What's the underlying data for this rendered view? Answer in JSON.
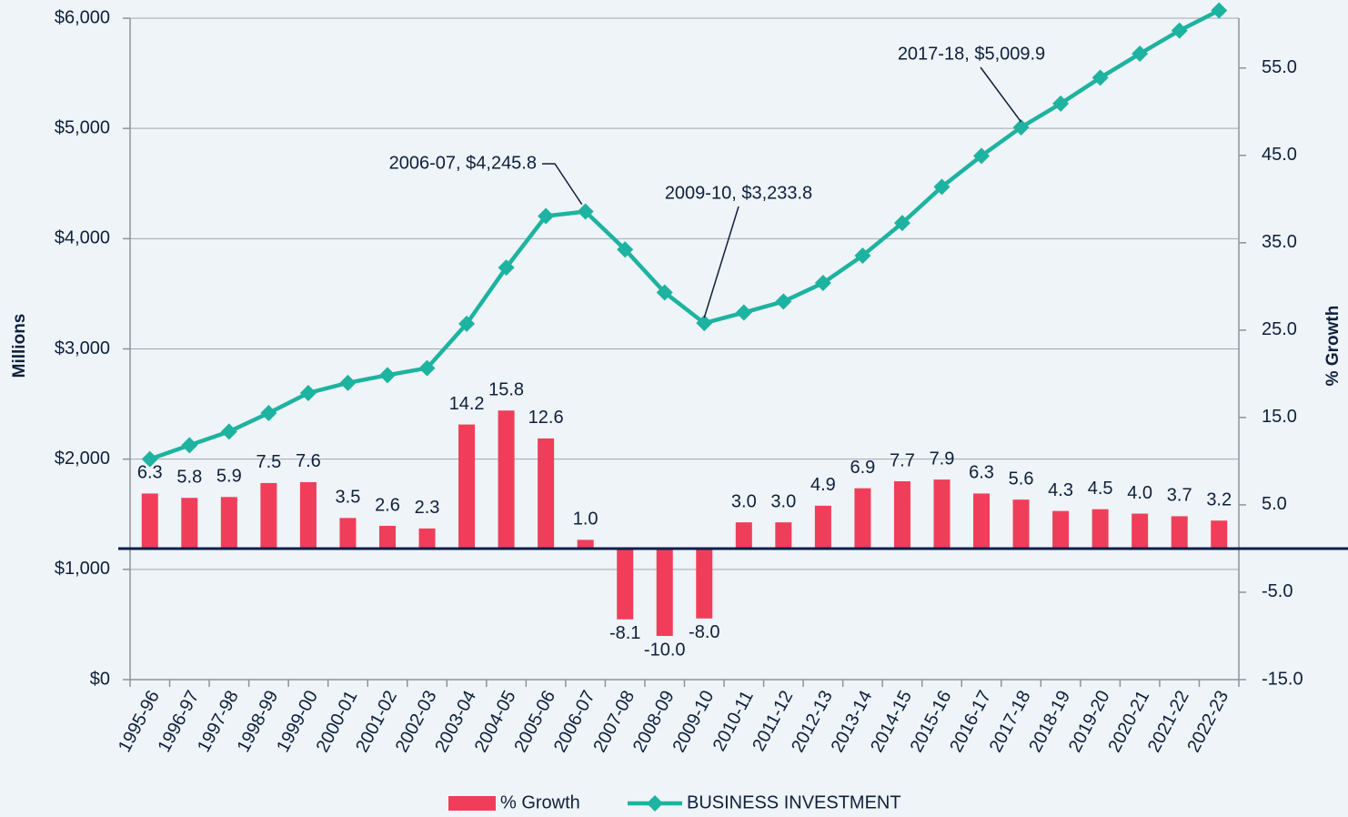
{
  "chart_data": {
    "type": "bar-line",
    "categories": [
      "1995-96",
      "1996-97",
      "1997-98",
      "1998-99",
      "1999-00",
      "2000-01",
      "2001-02",
      "2002-03",
      "2003-04",
      "2004-05",
      "2005-06",
      "2006-07",
      "2007-08",
      "2008-09",
      "2009-10",
      "2010-11",
      "2011-12",
      "2012-13",
      "2013-14",
      "2014-15",
      "2015-16",
      "2016-17",
      "2017-18",
      "2018-19",
      "2019-20",
      "2020-21",
      "2021-22",
      "2022-23"
    ],
    "series": [
      {
        "name": "% Growth",
        "type": "bar",
        "axis": "y2",
        "color": "#f03e5a",
        "values": [
          6.3,
          5.8,
          5.9,
          7.5,
          7.6,
          3.5,
          2.6,
          2.3,
          14.2,
          15.8,
          12.6,
          1.0,
          -8.1,
          -10.0,
          -8.0,
          3.0,
          3.0,
          4.9,
          6.9,
          7.7,
          7.9,
          6.3,
          5.6,
          4.3,
          4.5,
          4.0,
          3.7,
          3.2
        ],
        "value_labels": [
          "6.3",
          "5.8",
          "5.9",
          "7.5",
          "7.6",
          "3.5",
          "2.6",
          "2.3",
          "14.2",
          "15.8",
          "12.6",
          "1.0",
          "-8.1",
          "-10.0",
          "-8.0",
          "3.0",
          "3.0",
          "4.9",
          "6.9",
          "7.7",
          "7.9",
          "6.3",
          "5.6",
          "4.3",
          "4.5",
          "4.0",
          "3.7",
          "3.2"
        ]
      },
      {
        "name": "BUSINESS INVESTMENT",
        "type": "line",
        "axis": "y",
        "color": "#1db3a0",
        "values": [
          2000,
          2126,
          2250,
          2418,
          2600,
          2692,
          2762,
          2826,
          3228,
          3738,
          4205,
          4245.8,
          3902,
          3512,
          3233.8,
          3330,
          3430,
          3598,
          3846,
          4142,
          4470,
          4751,
          5009.9,
          5225,
          5460,
          5678,
          5888,
          6070
        ]
      }
    ],
    "ylabel": "Millions",
    "y2label": "% Growth",
    "ylim": [
      0,
      6000
    ],
    "yticks": [
      {
        "value": 0,
        "label": "$0"
      },
      {
        "value": 1000,
        "label": "$1,000"
      },
      {
        "value": 2000,
        "label": "$2,000"
      },
      {
        "value": 3000,
        "label": "$3,000"
      },
      {
        "value": 4000,
        "label": "$4,000"
      },
      {
        "value": 5000,
        "label": "$5,000"
      },
      {
        "value": 6000,
        "label": "$6,000"
      }
    ],
    "y2lim": [
      -15,
      60.7
    ],
    "y2ticks": [
      {
        "value": -15,
        "label": "-15.0"
      },
      {
        "value": -5,
        "label": "-5.0"
      },
      {
        "value": 5,
        "label": "5.0"
      },
      {
        "value": 15,
        "label": "15.0"
      },
      {
        "value": 25,
        "label": "25.0"
      },
      {
        "value": 35,
        "label": "35.0"
      },
      {
        "value": 45,
        "label": "45.0"
      },
      {
        "value": 55,
        "label": "55.0"
      }
    ],
    "annotations": [
      "2006-07, $4,245.8",
      "2009-10, $3,233.8",
      "2017-18, $5,009.9"
    ],
    "grid": true,
    "legend": "bottom"
  }
}
